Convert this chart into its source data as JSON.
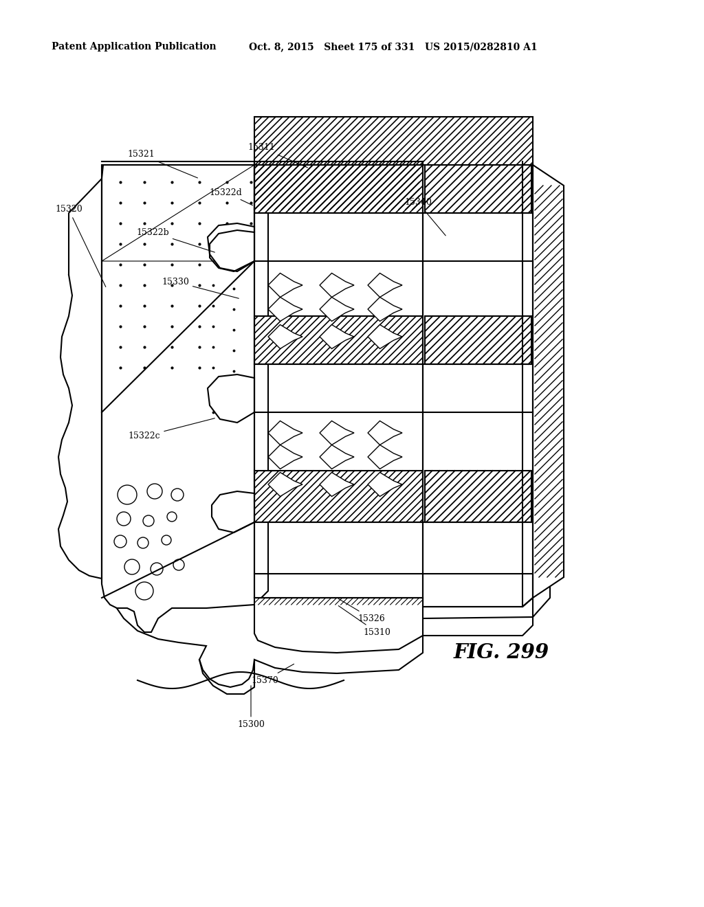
{
  "header_left": "Patent Application Publication",
  "header_right": "Oct. 8, 2015   Sheet 175 of 331   US 2015/0282810 A1",
  "fig_label": "FIG. 299",
  "bg_color": "#ffffff",
  "line_color": "#000000"
}
